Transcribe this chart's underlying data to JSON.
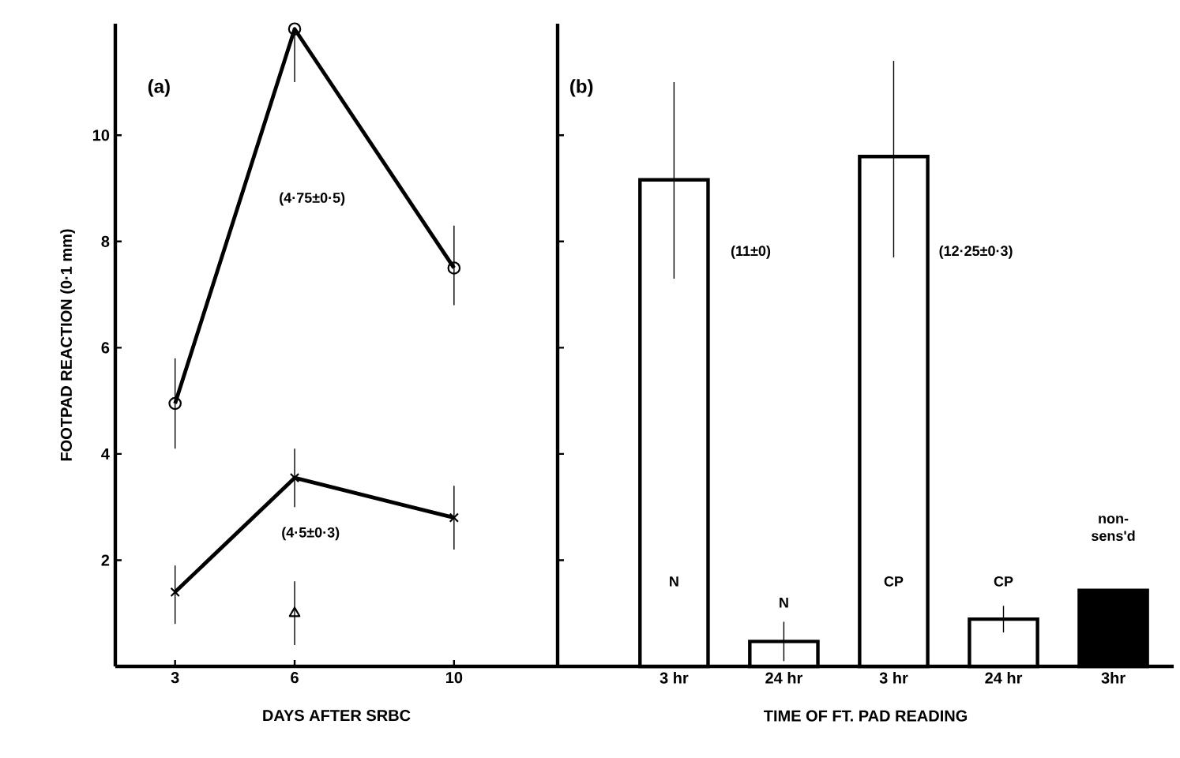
{
  "chart_data": [
    {
      "type": "line",
      "title": "(a)",
      "xlabel": "DAYS AFTER SRBC",
      "ylabel": "FOOTPAD REACTION (0·1 mm)",
      "xlim": [
        1.5,
        12.6
      ],
      "xticks": [
        3,
        6,
        10
      ],
      "ylim": [
        0,
        12.1
      ],
      "yticks": [
        2,
        4,
        6,
        8,
        10
      ],
      "series": [
        {
          "color": "#000000",
          "marker": "circle",
          "x": [
            3,
            6,
            10
          ],
          "values": [
            4.95,
            12.0,
            7.5
          ],
          "errors": [
            [
              4.1,
              5.8
            ],
            [
              11.0,
              12.0
            ],
            [
              6.8,
              8.3
            ]
          ]
        },
        {
          "color": "#000000",
          "marker": "cross",
          "x": [
            3,
            6,
            10
          ],
          "values": [
            1.4,
            3.55,
            2.8
          ],
          "errors": [
            [
              0.8,
              1.9
            ],
            [
              3.0,
              4.1
            ],
            [
              2.2,
              3.4
            ]
          ]
        },
        {
          "type": "scatter",
          "color": "#000000",
          "marker": "triangle",
          "x": [
            6
          ],
          "values": [
            1.0
          ],
          "errors": [
            [
              0.4,
              1.6
            ]
          ]
        }
      ],
      "annotations": [
        "(4·75±0·5)",
        "(4·5±0·3)"
      ]
    },
    {
      "type": "bar",
      "title": "(b)",
      "xlabel": "TIME OF FT. PAD READING",
      "tick_labels": "x",
      "ylim": [
        0,
        12.1
      ],
      "yticks": [
        2,
        4,
        6,
        8,
        10
      ],
      "categories": [
        "3 hr",
        "24 hr",
        "3 hr",
        "24 hr",
        "3hr"
      ],
      "values": [
        9.16,
        0.47,
        9.6,
        0.89,
        1.43
      ],
      "colors": [
        "#ffffff",
        "#ffffff",
        "#ffffff",
        "#ffffff",
        "#000000"
      ],
      "errors": [
        [
          7.3,
          11.0
        ],
        0.37,
        [
          7.7,
          11.4
        ],
        0.25,
        null
      ],
      "annotations": [
        "(11±0)",
        "(12·25±0·3)",
        "N",
        "N",
        "CP",
        "CP",
        "non-sens'd"
      ]
    }
  ]
}
